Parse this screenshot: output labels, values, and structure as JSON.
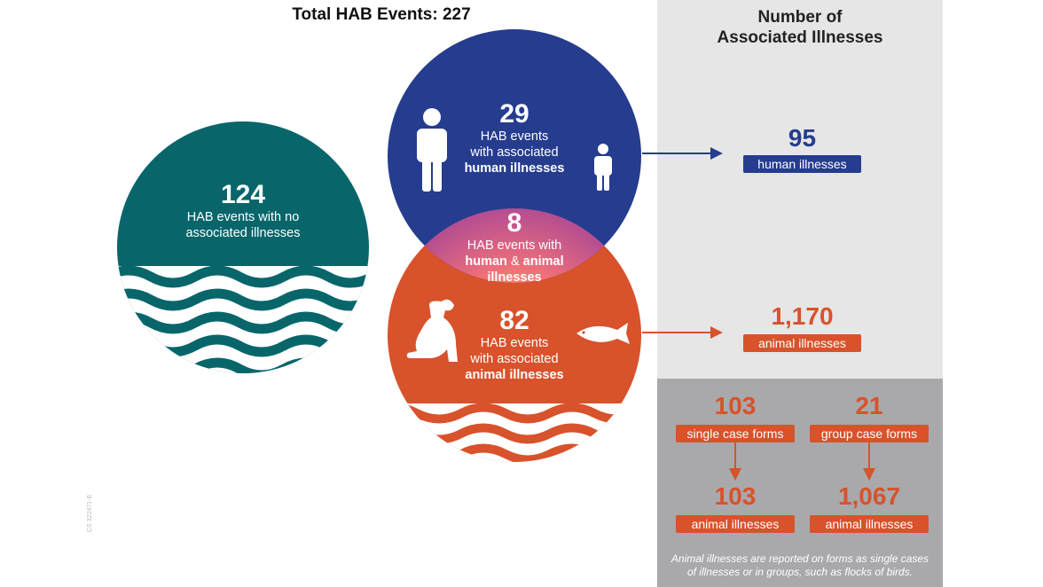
{
  "title": "Total HAB Events: 227",
  "right_title_line1": "Number of",
  "right_title_line2": "Associated Illnesses",
  "no_illness": {
    "number": "124",
    "line1": "HAB events with no",
    "line2": "associated illnesses"
  },
  "human": {
    "number": "29",
    "line1": "HAB events",
    "line2": "with associated",
    "line3": "human illnesses"
  },
  "overlap": {
    "number": "8",
    "line1": "HAB events with",
    "line2a": "human",
    "line2b": "&",
    "line2c": "animal",
    "line3": "illnesses"
  },
  "animal": {
    "number": "82",
    "line1": "HAB events",
    "line2": "with associated",
    "line3": "animal illnesses"
  },
  "human_illness_count": {
    "number": "95",
    "label": "human illnesses"
  },
  "animal_illness_count": {
    "number": "1,170",
    "label": "animal illnesses"
  },
  "single_forms": {
    "number": "103",
    "label": "single case forms",
    "result_number": "103",
    "result_label": "animal illnesses"
  },
  "group_forms": {
    "number": "21",
    "label": "group case forms",
    "result_number": "1,067",
    "result_label": "animal illnesses"
  },
  "footnote_line1": "Animal illnesses are reported on forms as single cases",
  "footnote_line2": "of illnesses or in groups, such as flocks of birds.",
  "code": "CS 322471-B",
  "colors": {
    "teal": "#08666b",
    "blue": "#253c8f",
    "orange": "#d8522b",
    "pink": "#e6498a",
    "gold": "#f6b73a"
  },
  "icons": [
    "adult-person-icon",
    "child-person-icon",
    "dog-icon",
    "fish-icon",
    "water-waves-icon",
    "arrow-icon"
  ]
}
